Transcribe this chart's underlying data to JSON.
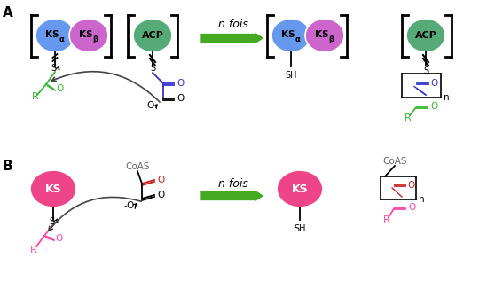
{
  "title_a": "A",
  "title_b": "B",
  "n_fois": "n fois",
  "color_ksa": "#6699ee",
  "color_ksb": "#cc66cc",
  "color_acp": "#55aa77",
  "color_ks_b": "#ee4488",
  "color_green": "#33bb33",
  "color_magenta": "#ff44aa",
  "color_blue": "#3333cc",
  "color_red": "#cc2222",
  "color_arrow_green": "#44aa22",
  "color_dark": "#333333",
  "bg_color": "#ffffff"
}
